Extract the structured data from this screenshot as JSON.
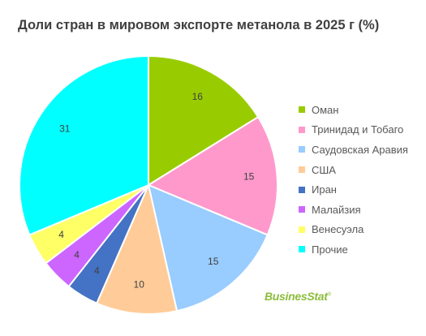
{
  "chart_data": {
    "type": "pie",
    "title": "Доли стран в мировом экспорте метанола в 2025 г (%)",
    "categories": [
      "Оман",
      "Тринидад и Тобаго",
      "Саудовская Аравия",
      "США",
      "Иран",
      "Малайзия",
      "Венесуэла",
      "Прочие"
    ],
    "values": [
      16,
      15,
      15,
      10,
      4,
      4,
      4,
      31
    ],
    "colors": [
      "#99cc00",
      "#ff99cc",
      "#99ccff",
      "#ffcc99",
      "#4472c4",
      "#cc66ff",
      "#ffff66",
      "#00ffff"
    ],
    "start_angle_deg": 0,
    "direction": "clockwise",
    "data_labels": true,
    "legend": "right"
  },
  "watermark": {
    "brand": "BusinesStat",
    "mark": "®"
  }
}
